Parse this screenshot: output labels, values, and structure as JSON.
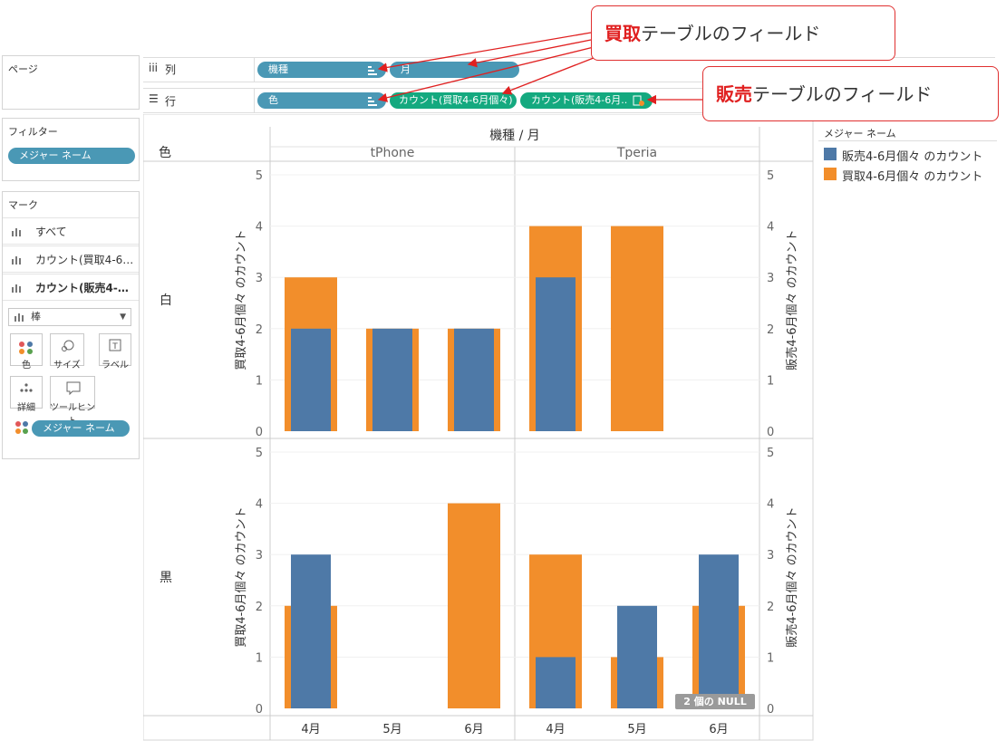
{
  "left_panel": {
    "pages_title": "ページ",
    "filters_title": "フィルター",
    "filter_pill": "メジャー ネーム",
    "marks_title": "マーク",
    "mark_rows": [
      {
        "label": "すべて",
        "bold": false
      },
      {
        "label": "カウント(買取4-6…",
        "bold": false
      },
      {
        "label": "カウント(販売4-…",
        "bold": true
      }
    ],
    "mark_type": "棒",
    "mark_buttons": [
      "色",
      "サイズ",
      "ラベル",
      "詳細",
      "ツールヒント"
    ],
    "color_pill": "メジャー ネーム"
  },
  "shelves": {
    "columns_label": "列",
    "rows_label": "行",
    "column_pills": [
      "機種",
      "月"
    ],
    "row_pills": [
      "色",
      "カウント(買取4-6月個々)",
      "カウント(販売4-6月.."
    ]
  },
  "callouts": {
    "buy_bold": "買取",
    "buy_rest": "テーブルのフィールド",
    "sell_bold": "販売",
    "sell_rest": "テーブルのフィールド"
  },
  "legend": {
    "title": "メジャー ネーム",
    "items": [
      {
        "label": "販売4-6月個々 のカウント",
        "color": "#4e79a7"
      },
      {
        "label": "買取4-6月個々 のカウント",
        "color": "#f28e2b"
      }
    ]
  },
  "null_badge": "2 個の NULL",
  "chart_data": {
    "type": "bar",
    "header_title": "機種 / 月",
    "row_dim_title": "色",
    "column_groups": [
      "tPhone",
      "Tperia"
    ],
    "months": [
      "4月",
      "5月",
      "6月"
    ],
    "rows": [
      "白",
      "黒"
    ],
    "y_left_label": "買取4-6月個々 のカウント",
    "y_right_label": "販売4-6月個々 のカウント",
    "ylim": [
      0,
      5
    ],
    "y_ticks": [
      "0",
      "1",
      "2",
      "3",
      "4",
      "5"
    ],
    "series": [
      {
        "name": "買取4-6月個々 のカウント",
        "color": "#f28e2b",
        "values": {
          "白": {
            "tPhone": [
              3,
              2,
              2
            ],
            "Tperia": [
              4,
              4,
              null
            ]
          },
          "黒": {
            "tPhone": [
              2,
              null,
              4
            ],
            "Tperia": [
              3,
              1,
              2
            ]
          }
        }
      },
      {
        "name": "販売4-6月個々 のカウント",
        "color": "#4e79a7",
        "values": {
          "白": {
            "tPhone": [
              2,
              2,
              2
            ],
            "Tperia": [
              3,
              null,
              null
            ]
          },
          "黒": {
            "tPhone": [
              3,
              null,
              null
            ],
            "Tperia": [
              1,
              2,
              3
            ]
          }
        }
      }
    ]
  }
}
